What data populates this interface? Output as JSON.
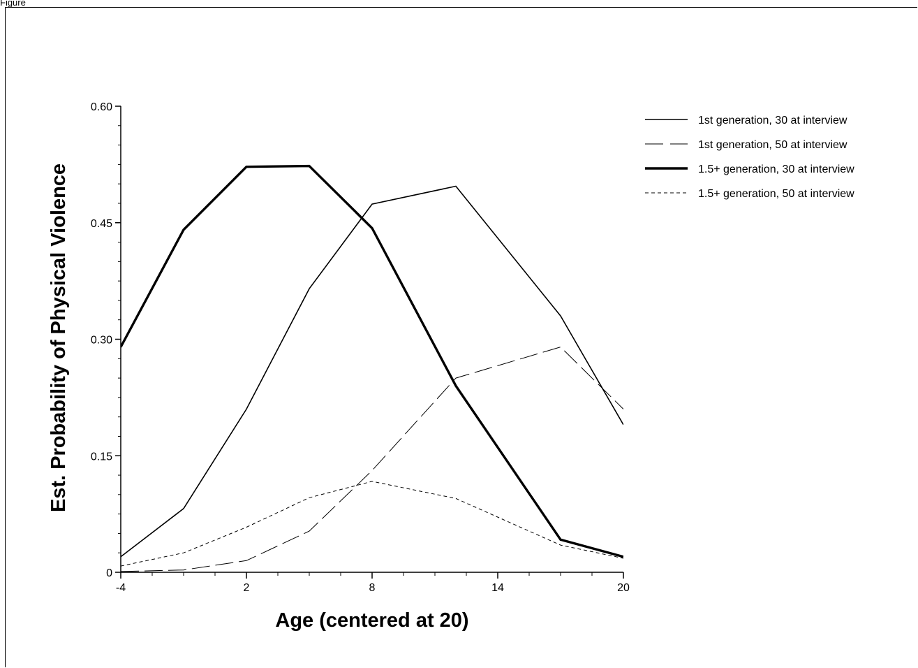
{
  "figure_label": "Figure",
  "chart_data": {
    "type": "line",
    "title": "",
    "xlabel": "Age (centered at 20)",
    "ylabel": "Est. Probability of Physical Violence",
    "xlim": [
      -4,
      20
    ],
    "ylim": [
      0,
      0.6
    ],
    "x_ticks": [
      -4,
      2,
      8,
      14,
      20
    ],
    "x_tick_labels": [
      "-4",
      "2",
      "8",
      "14",
      "20"
    ],
    "y_ticks": [
      0,
      0.15,
      0.3,
      0.45,
      0.6
    ],
    "y_tick_labels": [
      "0",
      "0.15",
      "0.30",
      "0.45",
      "0.60"
    ],
    "legend_position": "top-right",
    "grid": false,
    "series": [
      {
        "name": "1st generation, 30 at interview",
        "style": "solid-medium",
        "color": "#000000",
        "x": [
          -4,
          -1,
          2,
          5,
          8,
          12,
          17,
          20
        ],
        "y": [
          0.02,
          0.082,
          0.21,
          0.365,
          0.474,
          0.497,
          0.33,
          0.19
        ]
      },
      {
        "name": "1st generation, 50 at interview",
        "style": "long-dash-thin",
        "color": "#000000",
        "x": [
          -4,
          -1,
          2,
          5,
          8,
          12,
          17,
          20
        ],
        "y": [
          0.001,
          0.003,
          0.015,
          0.053,
          0.131,
          0.25,
          0.29,
          0.21
        ]
      },
      {
        "name": "1.5+ generation, 30 at interview",
        "style": "solid-thick",
        "color": "#000000",
        "x": [
          -4,
          -1,
          2,
          5,
          8,
          12,
          17,
          20
        ],
        "y": [
          0.29,
          0.441,
          0.522,
          0.523,
          0.443,
          0.24,
          0.042,
          0.02
        ]
      },
      {
        "name": "1.5+ generation, 50 at interview",
        "style": "short-dash-thin",
        "color": "#000000",
        "x": [
          -4,
          -1,
          2,
          5,
          8,
          12,
          17,
          20
        ],
        "y": [
          0.008,
          0.025,
          0.058,
          0.096,
          0.117,
          0.095,
          0.035,
          0.018
        ]
      }
    ]
  }
}
